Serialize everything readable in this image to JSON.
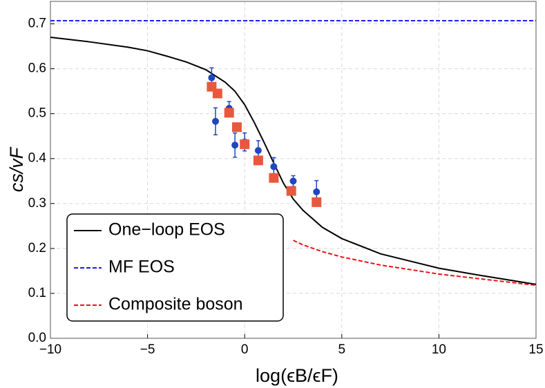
{
  "chart_data": {
    "type": "line",
    "x_label": "log(ϵB/ϵF)",
    "y_label": "cs/vF",
    "xlim": [
      -10,
      15
    ],
    "ylim": [
      0,
      0.75
    ],
    "xticks": [
      {
        "value": -10,
        "label": "−10"
      },
      {
        "value": -5,
        "label": "−5"
      },
      0,
      5,
      10,
      15
    ],
    "yticks": [
      {
        "value": 0,
        "label": "0.0"
      },
      0.1,
      0.2,
      0.3,
      0.4,
      0.5,
      0.6,
      0.7
    ],
    "grid": true,
    "legend": "lower left",
    "series": [
      {
        "name": "One−loop EOS",
        "color": "#000000",
        "dash": "solid",
        "x": [
          -10,
          -8,
          -6,
          -5,
          -4,
          -3,
          -2,
          -1,
          -0.5,
          0,
          0.5,
          1,
          1.5,
          2,
          2.5,
          3,
          4,
          5,
          7,
          10,
          12,
          15
        ],
        "values": [
          0.67,
          0.66,
          0.648,
          0.64,
          0.628,
          0.615,
          0.598,
          0.57,
          0.55,
          0.52,
          0.48,
          0.436,
          0.39,
          0.345,
          0.31,
          0.285,
          0.247,
          0.222,
          0.188,
          0.156,
          0.141,
          0.12
        ]
      },
      {
        "name": "MF EOS",
        "color": "#1a1aff",
        "dash": "dashed",
        "x": [
          -10,
          15
        ],
        "values": [
          0.707,
          0.707
        ]
      },
      {
        "name": "Composite boson",
        "color": "#ee1111",
        "dash": "dashed",
        "x": [
          2.5,
          3,
          4,
          5,
          7,
          10,
          12,
          15
        ],
        "values": [
          0.218,
          0.208,
          0.193,
          0.181,
          0.163,
          0.143,
          0.133,
          0.118
        ]
      }
    ],
    "points": [
      {
        "color": "#2046c0",
        "marker": "circle",
        "x": [
          -1.7,
          -1.5,
          -0.8,
          -0.5,
          0,
          0.7,
          1.5,
          2.5,
          3.7
        ],
        "values": [
          0.58,
          0.483,
          0.512,
          0.43,
          0.437,
          0.418,
          0.382,
          0.35,
          0.326
        ],
        "errors": [
          0.022,
          0.03,
          0.015,
          0.027,
          0.02,
          0.022,
          0.02,
          0.012,
          0.025
        ]
      },
      {
        "color": "#e8583f",
        "marker": "square",
        "x": [
          -1.7,
          -1.4,
          -0.8,
          -0.4,
          0,
          0.7,
          1.5,
          2.4,
          3.7
        ],
        "values": [
          0.56,
          0.545,
          0.502,
          0.47,
          0.432,
          0.396,
          0.357,
          0.328,
          0.303
        ]
      }
    ]
  }
}
